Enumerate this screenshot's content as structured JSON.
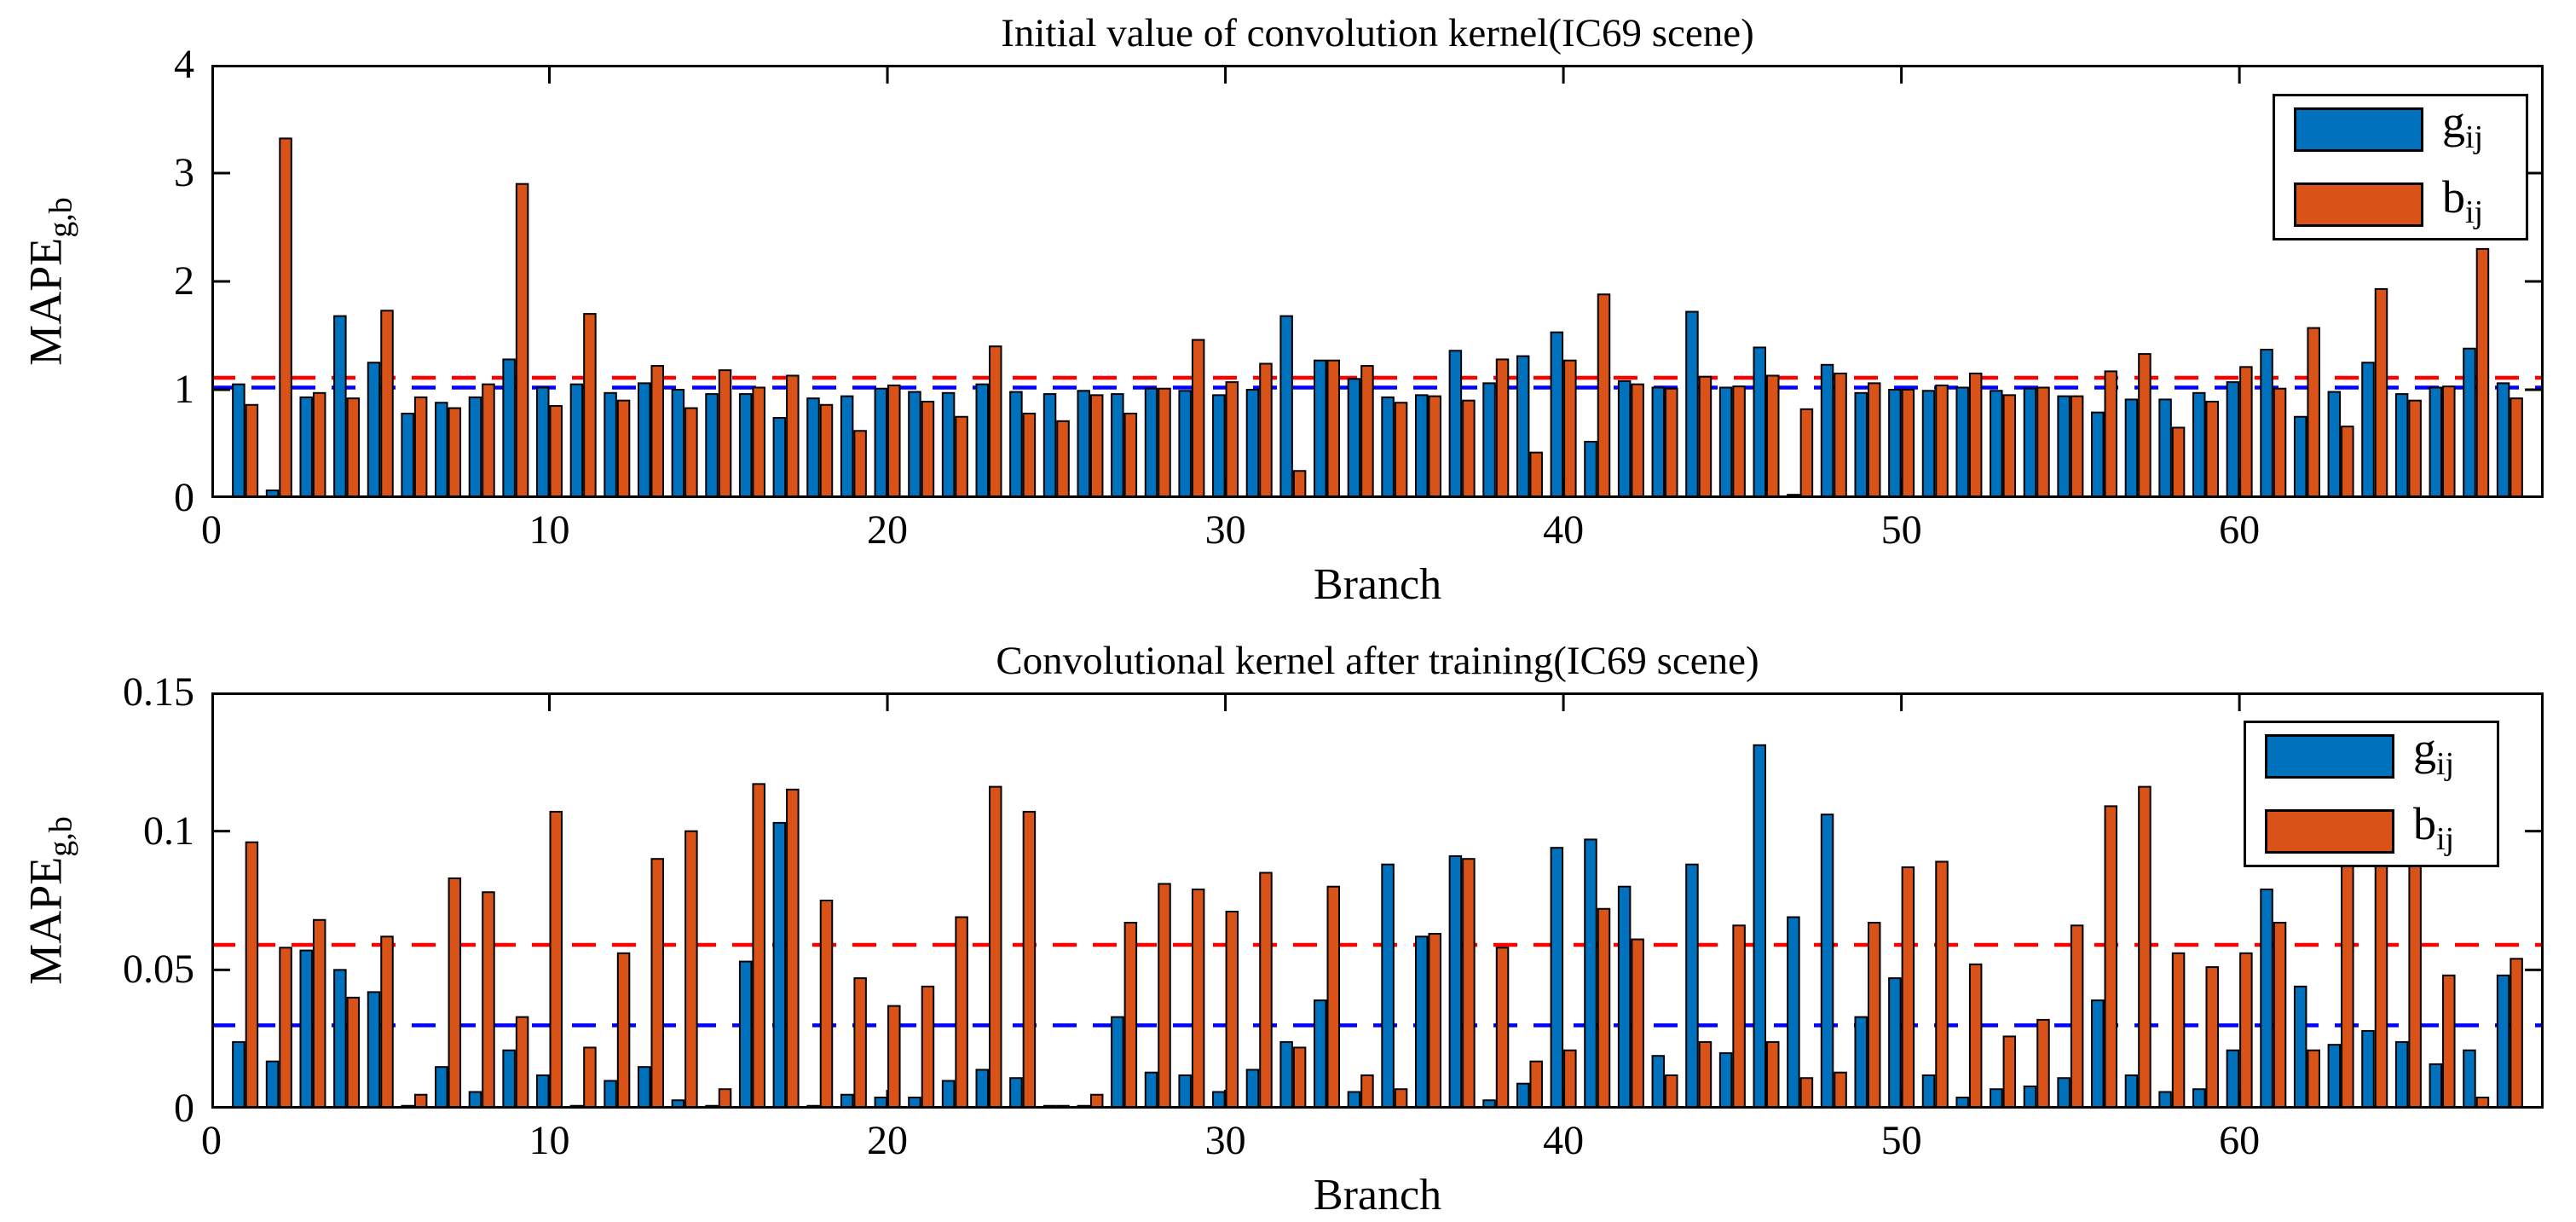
{
  "figure_background": "#ffffff",
  "colors": {
    "series_g": "#0072BD",
    "series_b": "#D95319",
    "dashed_red": "#FF0000",
    "dashed_blue": "#0000FF",
    "bar_edge": "#000000",
    "axis": "#000000"
  },
  "chart_data": [
    {
      "type": "bar",
      "title": "Initial value of convolution kernel(IC69 scene)",
      "xlabel": "Branch",
      "ylabel": "MAPE",
      "ylabel_sub": "g,b",
      "n_branches": 68,
      "x_range": [
        0,
        69
      ],
      "ylim": [
        0,
        4
      ],
      "xticks": [
        0,
        10,
        20,
        30,
        40,
        50,
        60
      ],
      "yticks": [
        0,
        1,
        2,
        3,
        4
      ],
      "yticklabels": [
        "0",
        "1",
        "2",
        "3",
        "4"
      ],
      "grid": false,
      "legend_position": "top-right",
      "series": [
        {
          "name": "g_ij",
          "label_main": "g",
          "label_sub": "ij",
          "color": "#0072BD",
          "values": [
            1.05,
            0.07,
            0.93,
            1.68,
            1.25,
            0.78,
            0.88,
            0.93,
            1.28,
            1.02,
            1.05,
            0.97,
            1.06,
            1.0,
            0.96,
            0.96,
            0.74,
            0.92,
            0.94,
            1.01,
            0.98,
            0.97,
            1.05,
            0.98,
            0.96,
            0.99,
            0.96,
            1.01,
            0.99,
            0.95,
            1.0,
            1.68,
            1.27,
            1.1,
            0.93,
            0.95,
            1.36,
            1.06,
            1.31,
            1.53,
            0.52,
            1.08,
            1.02,
            1.72,
            1.02,
            1.39,
            0.03,
            1.23,
            0.97,
            1.0,
            0.99,
            1.02,
            0.99,
            1.01,
            0.94,
            0.79,
            0.91,
            0.91,
            0.97,
            1.07,
            1.37,
            0.75,
            0.98,
            1.25,
            0.96,
            1.02,
            1.38,
            1.06
          ]
        },
        {
          "name": "b_ij",
          "label_main": "b",
          "label_sub": "ij",
          "color": "#D95319",
          "values": [
            0.86,
            3.32,
            0.97,
            0.92,
            1.73,
            0.93,
            0.83,
            1.05,
            2.9,
            0.85,
            1.7,
            0.9,
            1.22,
            0.83,
            1.18,
            1.02,
            1.13,
            0.86,
            0.62,
            1.04,
            0.89,
            0.75,
            1.4,
            0.78,
            0.71,
            0.95,
            0.78,
            1.01,
            1.46,
            1.07,
            1.24,
            0.25,
            1.27,
            1.22,
            0.88,
            0.94,
            0.9,
            1.28,
            0.42,
            1.27,
            1.88,
            1.05,
            1.01,
            1.12,
            1.03,
            1.13,
            0.82,
            1.15,
            1.06,
            1.0,
            1.04,
            1.15,
            0.95,
            1.02,
            0.94,
            1.17,
            1.33,
            0.65,
            0.89,
            1.21,
            1.01,
            1.57,
            0.66,
            1.93,
            0.9,
            1.03,
            2.3,
            0.92
          ]
        }
      ],
      "dashed_lines": [
        {
          "color": "#FF0000",
          "y": 1.11
        },
        {
          "color": "#0000FF",
          "y": 1.02
        }
      ]
    },
    {
      "type": "bar",
      "title": "Convolutional kernel after training(IC69 scene)",
      "xlabel": "Branch",
      "ylabel": "MAPE",
      "ylabel_sub": "g,b",
      "n_branches": 68,
      "x_range": [
        0,
        69
      ],
      "ylim": [
        0,
        0.15
      ],
      "xticks": [
        0,
        10,
        20,
        30,
        40,
        50,
        60
      ],
      "yticks": [
        0,
        0.05,
        0.1,
        0.15
      ],
      "yticklabels": [
        "0",
        "0.05",
        "0.1",
        "0.15"
      ],
      "grid": false,
      "legend_position": "top-right",
      "series": [
        {
          "name": "g_ij",
          "label_main": "g",
          "label_sub": "ij",
          "color": "#0072BD",
          "values": [
            0.024,
            0.017,
            0.057,
            0.05,
            0.042,
            0.001,
            0.015,
            0.006,
            0.021,
            0.012,
            0.001,
            0.01,
            0.015,
            0.003,
            0.001,
            0.053,
            0.103,
            0.001,
            0.005,
            0.004,
            0.004,
            0.01,
            0.014,
            0.011,
            0.001,
            0.001,
            0.033,
            0.013,
            0.012,
            0.006,
            0.014,
            0.024,
            0.039,
            0.006,
            0.088,
            0.062,
            0.091,
            0.003,
            0.009,
            0.094,
            0.097,
            0.08,
            0.019,
            0.088,
            0.02,
            0.131,
            0.069,
            0.106,
            0.033,
            0.047,
            0.012,
            0.004,
            0.007,
            0.008,
            0.011,
            0.039,
            0.012,
            0.006,
            0.007,
            0.021,
            0.079,
            0.044,
            0.023,
            0.028,
            0.024,
            0.016,
            0.021,
            0.048
          ]
        },
        {
          "name": "b_ij",
          "label_main": "b",
          "label_sub": "ij",
          "color": "#D95319",
          "values": [
            0.096,
            0.058,
            0.068,
            0.04,
            0.062,
            0.005,
            0.083,
            0.078,
            0.033,
            0.107,
            0.022,
            0.056,
            0.09,
            0.1,
            0.007,
            0.117,
            0.115,
            0.075,
            0.047,
            0.037,
            0.044,
            0.069,
            0.116,
            0.107,
            0.001,
            0.005,
            0.067,
            0.081,
            0.079,
            0.071,
            0.085,
            0.022,
            0.08,
            0.012,
            0.007,
            0.063,
            0.09,
            0.058,
            0.017,
            0.021,
            0.072,
            0.061,
            0.012,
            0.024,
            0.066,
            0.024,
            0.011,
            0.013,
            0.067,
            0.087,
            0.089,
            0.052,
            0.026,
            0.032,
            0.066,
            0.109,
            0.116,
            0.056,
            0.051,
            0.056,
            0.067,
            0.021,
            0.1,
            0.098,
            0.103,
            0.048,
            0.004,
            0.054
          ]
        }
      ],
      "dashed_lines": [
        {
          "color": "#FF0000",
          "y": 0.059
        },
        {
          "color": "#0000FF",
          "y": 0.03
        }
      ]
    }
  ]
}
